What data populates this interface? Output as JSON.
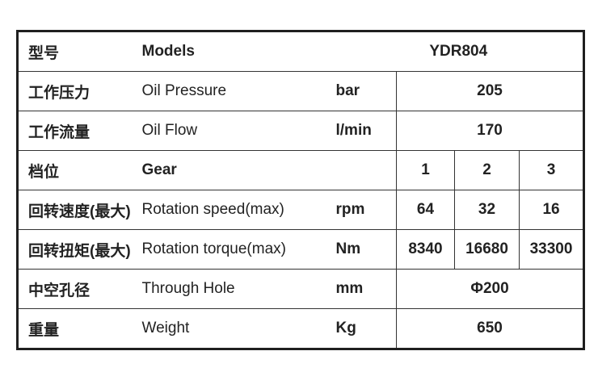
{
  "rows": [
    {
      "cn": "型号",
      "en": "Models",
      "unit": "",
      "value": "YDR804"
    },
    {
      "cn": "工作压力",
      "en": "Oil Pressure",
      "unit": "bar",
      "value": "205"
    },
    {
      "cn": "工作流量",
      "en": "Oil Flow",
      "unit": "l/min",
      "value": "170"
    },
    {
      "cn": "档位",
      "en": "Gear",
      "unit": "",
      "values": [
        "1",
        "2",
        "3"
      ]
    },
    {
      "cn": "回转速度(最大)",
      "en": "Rotation speed(max)",
      "unit": "rpm",
      "values": [
        "64",
        "32",
        "16"
      ]
    },
    {
      "cn": "回转扭矩(最大)",
      "en": "Rotation torque(max)",
      "unit": "Nm",
      "values": [
        "8340",
        "16680",
        "33300"
      ]
    },
    {
      "cn": "中空孔径",
      "en": "Through Hole",
      "unit": "mm",
      "value": "Φ200"
    },
    {
      "cn": "重量",
      "en": "Weight",
      "unit": "Kg",
      "value": "650"
    }
  ]
}
